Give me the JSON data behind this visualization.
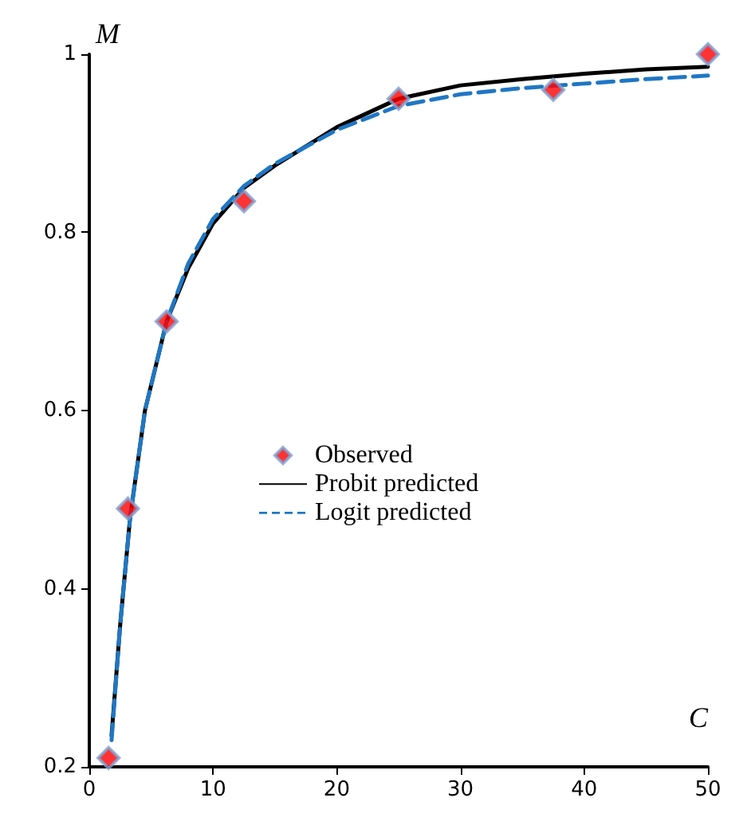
{
  "chart_data": {
    "type": "line",
    "xlabel": "C",
    "ylabel": "M",
    "xlim": [
      0,
      50
    ],
    "xticks": [
      0,
      10,
      20,
      30,
      40,
      50
    ],
    "ylim": [
      0.2,
      1
    ],
    "yticks": [
      0.2,
      0.4,
      0.6,
      0.8,
      1
    ],
    "grid": false,
    "legend": "center",
    "series": [
      {
        "name": "Observed",
        "type": "scatter",
        "marker": "diamond",
        "color": "#ff0000",
        "x": [
          1.56,
          3.125,
          6.25,
          12.5,
          25,
          37.5,
          50
        ],
        "values": [
          0.21,
          0.49,
          0.7,
          0.835,
          0.95,
          0.96,
          1.0
        ]
      },
      {
        "name": "Probit predicted",
        "type": "line",
        "marker": "none",
        "line_style": "solid",
        "color": "#000000",
        "x": [
          1.8,
          2.5,
          3.3,
          4.5,
          6.25,
          8,
          10,
          12.5,
          15,
          20,
          25,
          30,
          35,
          40,
          45,
          50
        ],
        "values": [
          0.235,
          0.36,
          0.48,
          0.6,
          0.7,
          0.76,
          0.81,
          0.85,
          0.875,
          0.918,
          0.95,
          0.965,
          0.972,
          0.978,
          0.983,
          0.986
        ]
      },
      {
        "name": "Logit predicted",
        "type": "line",
        "marker": "none",
        "line_style": "dashed",
        "color": "#1f77c4",
        "x": [
          1.8,
          2.5,
          3.3,
          4.5,
          6.25,
          8,
          10,
          12.5,
          15,
          20,
          25,
          30,
          35,
          40,
          45,
          50
        ],
        "values": [
          0.23,
          0.36,
          0.48,
          0.6,
          0.7,
          0.765,
          0.815,
          0.852,
          0.877,
          0.915,
          0.942,
          0.955,
          0.962,
          0.967,
          0.972,
          0.976
        ]
      }
    ]
  }
}
